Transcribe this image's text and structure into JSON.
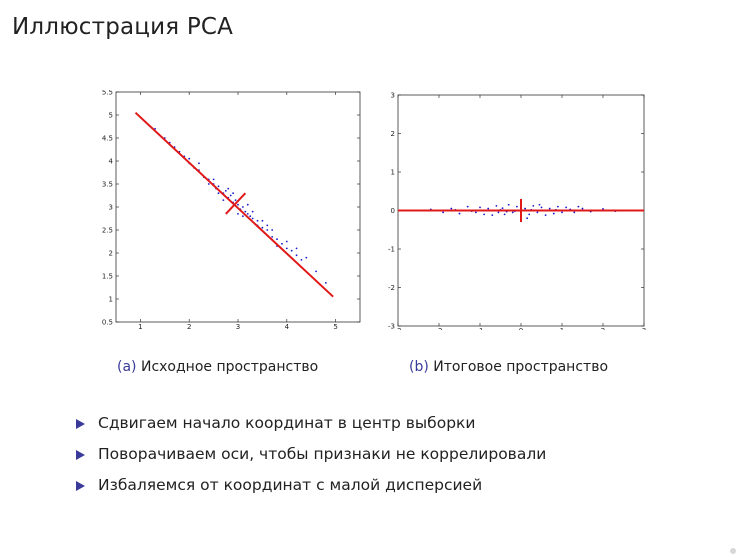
{
  "slide": {
    "title": "Иллюстрация PCA"
  },
  "figures": [
    {
      "id": "a",
      "caption_label": "(a)",
      "caption_text": "Исходное пространство"
    },
    {
      "id": "b",
      "caption_label": "(b)",
      "caption_text": "Итоговое пространство"
    }
  ],
  "bullets": [
    "Сдвигаем начало координат в центр выборки",
    "Поворачиваем оси, чтобы признаки не коррелировали",
    "Избaляемся от координат с малой дисперсией"
  ],
  "colors": {
    "accent": "#3a3a9a",
    "line": "#e01818",
    "points": "#1a1acc"
  },
  "chart_data": [
    {
      "type": "scatter",
      "title": "",
      "xlabel": "",
      "ylabel": "",
      "xlim": [
        0.5,
        5.5
      ],
      "ylim": [
        0.5,
        5.5
      ],
      "xticks": [
        "1",
        "2",
        "3",
        "4",
        "5"
      ],
      "yticks": [
        "0.5",
        "1",
        "1.5",
        "2",
        "2.5",
        "3",
        "3.5",
        "4",
        "4.5",
        "5",
        "5.5"
      ],
      "grid": false,
      "series": [
        {
          "values": [
            [
              1.1,
              4.85
            ],
            [
              1.3,
              4.7
            ],
            [
              1.5,
              4.5
            ],
            [
              1.7,
              4.3
            ],
            [
              1.9,
              4.1
            ],
            [
              2.0,
              3.95
            ],
            [
              2.1,
              3.85
            ],
            [
              2.2,
              3.8
            ],
            [
              2.3,
              3.65
            ],
            [
              2.4,
              3.6
            ],
            [
              2.5,
              3.5
            ],
            [
              2.55,
              3.4
            ],
            [
              2.6,
              3.45
            ],
            [
              2.7,
              3.3
            ],
            [
              2.75,
              3.35
            ],
            [
              2.8,
              3.2
            ],
            [
              2.85,
              3.25
            ],
            [
              2.9,
              3.1
            ],
            [
              2.95,
              3.15
            ],
            [
              3.0,
              3.05
            ],
            [
              3.05,
              2.95
            ],
            [
              3.1,
              3.0
            ],
            [
              3.15,
              2.9
            ],
            [
              3.2,
              2.85
            ],
            [
              3.25,
              2.8
            ],
            [
              3.3,
              2.75
            ],
            [
              3.4,
              2.7
            ],
            [
              3.5,
              2.55
            ],
            [
              3.6,
              2.5
            ],
            [
              3.7,
              2.35
            ],
            [
              3.8,
              2.3
            ],
            [
              3.9,
              2.2
            ],
            [
              4.0,
              2.1
            ],
            [
              4.1,
              2.05
            ],
            [
              4.2,
              1.95
            ],
            [
              4.3,
              1.85
            ],
            [
              2.2,
              3.95
            ],
            [
              2.5,
              3.6
            ],
            [
              2.7,
              3.15
            ],
            [
              2.9,
              3.3
            ],
            [
              3.1,
              2.8
            ],
            [
              3.3,
              2.9
            ],
            [
              3.5,
              2.7
            ],
            [
              3.7,
              2.5
            ],
            [
              2.4,
              3.5
            ],
            [
              2.6,
              3.3
            ],
            [
              2.8,
              3.4
            ],
            [
              3.0,
              2.85
            ],
            [
              3.2,
              3.05
            ],
            [
              3.4,
              2.6
            ],
            [
              3.6,
              2.6
            ],
            [
              3.8,
              2.15
            ],
            [
              4.0,
              2.25
            ],
            [
              4.2,
              2.1
            ],
            [
              4.4,
              1.9
            ],
            [
              4.6,
              1.6
            ],
            [
              4.8,
              1.35
            ],
            [
              1.6,
              4.4
            ],
            [
              1.8,
              4.2
            ],
            [
              2.0,
              4.05
            ]
          ]
        }
      ],
      "principal_axis": [
        [
          0.9,
          5.05
        ],
        [
          4.95,
          1.05
        ]
      ],
      "secondary_axis": [
        [
          2.75,
          2.85
        ],
        [
          3.15,
          3.3
        ]
      ]
    },
    {
      "type": "scatter",
      "title": "",
      "xlabel": "",
      "ylabel": "",
      "xlim": [
        -3,
        3
      ],
      "ylim": [
        -3,
        3
      ],
      "xticks": [
        "-3",
        "-2",
        "-1",
        "0",
        "1",
        "2",
        "3"
      ],
      "yticks": [
        "-3",
        "-2",
        "-1",
        "0",
        "1",
        "2",
        "3"
      ],
      "grid": false,
      "series": [
        {
          "values": [
            [
              -2.6,
              0.0
            ],
            [
              -2.2,
              0.03
            ],
            [
              -1.9,
              -0.05
            ],
            [
              -1.7,
              0.05
            ],
            [
              -1.5,
              -0.08
            ],
            [
              -1.3,
              0.1
            ],
            [
              -1.1,
              -0.05
            ],
            [
              -1.0,
              0.08
            ],
            [
              -0.9,
              -0.1
            ],
            [
              -0.8,
              0.05
            ],
            [
              -0.7,
              -0.12
            ],
            [
              -0.6,
              0.12
            ],
            [
              -0.5,
              0.02
            ],
            [
              -0.4,
              -0.1
            ],
            [
              -0.3,
              0.15
            ],
            [
              -0.2,
              -0.05
            ],
            [
              -0.1,
              0.1
            ],
            [
              0.0,
              -0.15
            ],
            [
              0.1,
              0.05
            ],
            [
              0.2,
              -0.1
            ],
            [
              0.3,
              0.12
            ],
            [
              0.4,
              -0.05
            ],
            [
              0.5,
              0.08
            ],
            [
              0.6,
              -0.12
            ],
            [
              0.7,
              0.05
            ],
            [
              0.8,
              -0.08
            ],
            [
              0.9,
              0.1
            ],
            [
              1.0,
              -0.05
            ],
            [
              1.1,
              0.08
            ],
            [
              1.3,
              -0.05
            ],
            [
              1.5,
              0.05
            ],
            [
              1.7,
              -0.03
            ],
            [
              2.0,
              0.04
            ],
            [
              2.3,
              -0.02
            ],
            [
              -1.2,
              -0.02
            ],
            [
              -0.95,
              0.0
            ],
            [
              -0.45,
              0.06
            ],
            [
              -0.15,
              -0.02
            ],
            [
              0.25,
              0.02
            ],
            [
              0.55,
              0.0
            ],
            [
              0.85,
              0.02
            ],
            [
              1.2,
              0.03
            ],
            [
              -1.6,
              0.02
            ],
            [
              -0.35,
              -0.03
            ],
            [
              0.45,
              0.15
            ],
            [
              0.15,
              -0.2
            ],
            [
              -0.55,
              -0.05
            ],
            [
              1.4,
              0.1
            ]
          ]
        }
      ],
      "principal_axis": [
        [
          -3,
          0
        ],
        [
          3,
          0
        ]
      ],
      "secondary_axis": [
        [
          0,
          -0.3
        ],
        [
          0,
          0.3
        ]
      ]
    }
  ]
}
